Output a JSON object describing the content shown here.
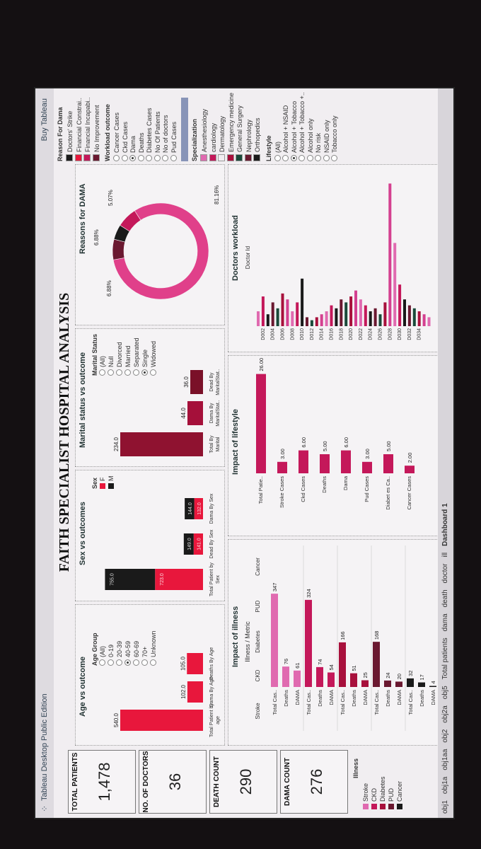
{
  "app": {
    "title": "Tableau Desktop Public Edition",
    "buy": "Buy Tableau"
  },
  "dashboard_title": "FAITH SPECIALIST HOSPITAL ANALYSIS",
  "kpis": [
    {
      "label": "TOTAL PATIENTS",
      "value": "1,478"
    },
    {
      "label": "NO. OF DOCTORS",
      "value": "36"
    },
    {
      "label": "DEATH COUNT",
      "value": "290"
    },
    {
      "label": "DAMA COUNT",
      "value": "276"
    }
  ],
  "illness_legend": {
    "title": "Illness",
    "items": [
      {
        "label": "Stroke",
        "color": "#e06ab0"
      },
      {
        "label": "CKD",
        "color": "#c4185a"
      },
      {
        "label": "Diabetes",
        "color": "#a8103c"
      },
      {
        "label": "PUD",
        "color": "#6a1830"
      },
      {
        "label": "Cancer",
        "color": "#1a1a1a"
      }
    ]
  },
  "age_panel": {
    "title": "Age vs outcome",
    "filter_title": "Age Group",
    "options": [
      "(All)",
      "0-19",
      "20-39",
      "40-59",
      "60-69",
      "70+",
      "Unknown"
    ],
    "selected": "40-59",
    "labels": [
      "Total Patient by age",
      "Dama By Age",
      "Deaths By Age"
    ]
  },
  "sex_panel": {
    "title": "Sex vs outcomes",
    "filter_title": "Sex",
    "legend": [
      {
        "label": "F",
        "color": "#e8173c"
      },
      {
        "label": "M",
        "color": "#1a1a1a"
      }
    ],
    "labels": [
      "Total Patient by Sex",
      "Dead By Sex",
      "Dama By Sex"
    ]
  },
  "marital_panel": {
    "title": "Marital status vs outcome",
    "filter_title": "Marital Status",
    "options": [
      "(All)",
      "Null",
      "Divorced",
      "Married",
      "Separated",
      "Single",
      "Widowed"
    ],
    "selected": "Single",
    "labels": [
      "Total By Marital",
      "Dama By MaritalStat..",
      "Dead By MaritalStat.."
    ]
  },
  "dama_panel": {
    "title": "Reasons for DAMA",
    "labels": [
      "6.88%",
      "6.88%",
      "5.07%",
      "81.16%"
    ]
  },
  "illness_panel": {
    "title": "Impact of illness",
    "axis_title": "Illness / Metric",
    "rows": [
      "Total Cas..",
      "Deaths",
      "DAMA"
    ],
    "groups": [
      "Stroke",
      "CKD",
      "Diabetes",
      "PUD",
      "Cancer"
    ]
  },
  "lifestyle_panel": {
    "title": "Impact of lifestyle",
    "categories": [
      "Total Patie..",
      "Stroke Cases",
      "Ckd Cases",
      "Deaths",
      "Dama",
      "Pud Cases",
      "Diabet es Ca..",
      "Cancer Cases"
    ]
  },
  "doctors_panel": {
    "title": "Doctors workload",
    "axis_title": "Doctor Id",
    "ticks": [
      "D002",
      "D004",
      "D006",
      "D008",
      "D010",
      "D012",
      "D014",
      "D016",
      "D018",
      "D020",
      "D022",
      "D024",
      "D026",
      "D028",
      "D030",
      "D032",
      "D034"
    ]
  },
  "sidebar": {
    "reason_title": "Reason For Dama",
    "reasons": [
      {
        "label": "Doctors' Strike",
        "color": "#1a1a1a"
      },
      {
        "label": "Financial Constrai..",
        "color": "#e8173c"
      },
      {
        "label": "Financial Incapabi..",
        "color": "#c4185a"
      },
      {
        "label": "No Improvement",
        "color": "#6a1830"
      }
    ],
    "workload_title": "Workload outcome",
    "workload": [
      "Cancer Cases",
      "Ckd Cases",
      "Dama",
      "Deaths",
      "Diabetes Cases",
      "No Of Patients",
      "No of doctors",
      "Pud Cases"
    ],
    "workload_selected": "Dama",
    "spec_title": "Specialization",
    "specs": [
      {
        "label": "Anesthesiology",
        "color": "#e06ab0"
      },
      {
        "label": "cardiology",
        "color": "#c4185a"
      },
      {
        "label": "Dermatology",
        "color": "#f1eef1"
      },
      {
        "label": "Emergency medicine",
        "color": "#a8103c"
      },
      {
        "label": "General Surgery",
        "color": "#1a4a3a"
      },
      {
        "label": "Nephrology",
        "color": "#6a1830"
      },
      {
        "label": "Orthopedics",
        "color": "#1a1a1a"
      }
    ],
    "lifestyle_title": "Lifestyle",
    "lifestyle": [
      "(All)",
      "Alcohol + NSAID",
      "Alcohol + Tobacco",
      "Alcohol + Tobacco +..",
      "Alcohol only",
      "No risk",
      "NSAID only",
      "Tobacco only"
    ],
    "lifestyle_selected": "Alcohol + Tobacco"
  },
  "tabs": [
    "obj1",
    "obj1a",
    "obj1aa",
    "obj2",
    "obj2a",
    "obj5",
    "Total patients",
    "dama",
    "death",
    "doctor",
    "ill",
    "Dashboard 1"
  ],
  "chart_data": [
    {
      "type": "bar",
      "title": "Age vs outcome",
      "categories": [
        "Total Patient by age",
        "Dama By Age",
        "Deaths By Age"
      ],
      "values": [
        540.0,
        102.0,
        105.0
      ]
    },
    {
      "type": "bar",
      "title": "Sex vs outcomes",
      "categories": [
        "Total Patient by Sex",
        "Dead By Sex",
        "Dama By Sex"
      ],
      "series": [
        {
          "name": "F",
          "values": [
            723.0,
            141.0,
            132.0
          ]
        },
        {
          "name": "M",
          "values": [
            755.0,
            149.0,
            144.0
          ]
        }
      ]
    },
    {
      "type": "bar",
      "title": "Marital status vs outcome",
      "categories": [
        "Total By Marital",
        "Dama By MaritalStat..",
        "Dead By MaritalStat.."
      ],
      "values": [
        234.0,
        44.0,
        36.0
      ]
    },
    {
      "type": "pie",
      "title": "Reasons for DAMA",
      "categories": [
        "Doctors' Strike",
        "Financial Constrai..",
        "Financial Incapabi..",
        "No Improvement"
      ],
      "values": [
        5.07,
        6.88,
        81.16,
        6.88
      ]
    },
    {
      "type": "bar",
      "title": "Impact of illness",
      "categories": [
        "Stroke",
        "CKD",
        "Diabetes",
        "PUD",
        "Cancer"
      ],
      "series": [
        {
          "name": "Total Cas..",
          "values": [
            347,
            324,
            166,
            168,
            32
          ]
        },
        {
          "name": "Deaths",
          "values": [
            76,
            74,
            51,
            24,
            17
          ]
        },
        {
          "name": "DAMA",
          "values": [
            61,
            54,
            25,
            20,
            4
          ]
        }
      ]
    },
    {
      "type": "bar",
      "title": "Impact of lifestyle",
      "categories": [
        "Total Patie..",
        "Stroke Cases",
        "Ckd Cases",
        "Deaths",
        "Dama",
        "Pud Cases",
        "Diabet es Ca..",
        "Cancer Cases"
      ],
      "values": [
        26.0,
        3.0,
        6.0,
        5.0,
        6.0,
        3.0,
        5.0,
        2.0
      ]
    },
    {
      "type": "bar",
      "title": "Doctors workload",
      "xlabel": "Doctor Id",
      "categories": [
        "D001",
        "D002",
        "D003",
        "D004",
        "D005",
        "D006",
        "D007",
        "D008",
        "D009",
        "D010",
        "D011",
        "D012",
        "D013",
        "D014",
        "D015",
        "D016",
        "D017",
        "D018",
        "D019",
        "D020",
        "D021",
        "D022",
        "D023",
        "D024",
        "D025",
        "D026",
        "D027",
        "D028",
        "D029",
        "D030",
        "D031",
        "D032",
        "D033",
        "D034",
        "D035",
        "D036"
      ],
      "values": [
        5,
        10,
        4,
        8,
        6,
        11,
        9,
        5,
        8,
        16,
        3,
        2,
        3,
        4,
        5,
        7,
        6,
        9,
        8,
        10,
        12,
        9,
        7,
        5,
        6,
        4,
        8,
        48,
        28,
        14,
        9,
        7,
        6,
        5,
        4,
        3
      ]
    }
  ]
}
